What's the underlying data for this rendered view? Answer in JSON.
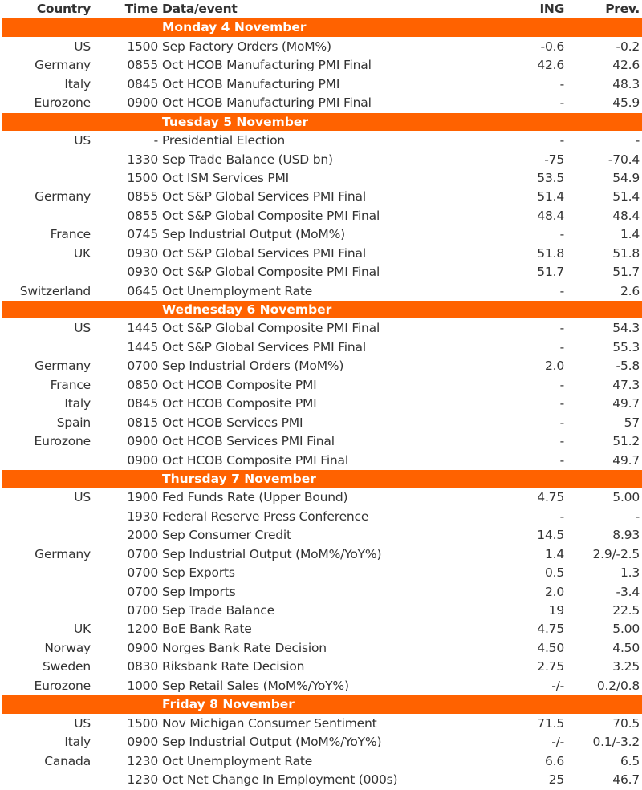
{
  "header": {
    "country": "Country",
    "time": "Time",
    "event": "Data/event",
    "ing": "ING",
    "prev": "Prev."
  },
  "colors": {
    "accent": "#ff6200",
    "text": "#333333"
  },
  "days": [
    {
      "label": "Monday 4 November",
      "rows": [
        [
          "US",
          "1500",
          "Sep Factory Orders (MoM%)",
          "-0.6",
          "-0.2"
        ],
        [
          "Germany",
          "0855",
          "Oct HCOB Manufacturing PMI Final",
          "42.6",
          "42.6"
        ],
        [
          "Italy",
          "0845",
          "Oct HCOB Manufacturing PMI",
          "-",
          "48.3"
        ],
        [
          "Eurozone",
          "0900",
          "Oct HCOB Manufacturing PMI Final",
          "-",
          "45.9"
        ]
      ]
    },
    {
      "label": "Tuesday 5 November",
      "rows": [
        [
          "US",
          "-",
          "Presidential Election",
          "-",
          "-"
        ],
        [
          "",
          "1330",
          "Sep Trade Balance (USD bn)",
          "-75",
          "-70.4"
        ],
        [
          "",
          "1500",
          "Oct ISM Services PMI",
          "53.5",
          "54.9"
        ],
        [
          "Germany",
          "0855",
          "Oct S&P Global Services PMI Final",
          "51.4",
          "51.4"
        ],
        [
          "",
          "0855",
          "Oct S&P Global Composite PMI Final",
          "48.4",
          "48.4"
        ],
        [
          "France",
          "0745",
          "Sep Industrial Output (MoM%)",
          "-",
          "1.4"
        ],
        [
          "UK",
          "0930",
          "Oct S&P Global Services PMI Final",
          "51.8",
          "51.8"
        ],
        [
          "",
          "0930",
          "Oct S&P Global Composite PMI Final",
          "51.7",
          "51.7"
        ],
        [
          "Switzerland",
          "0645",
          "Oct Unemployment Rate",
          "-",
          "2.6"
        ]
      ]
    },
    {
      "label": "Wednesday 6 November",
      "rows": [
        [
          "US",
          "1445",
          "Oct S&P Global Composite PMI Final",
          "-",
          "54.3"
        ],
        [
          "",
          "1445",
          "Oct S&P Global Services PMI Final",
          "-",
          "55.3"
        ],
        [
          "Germany",
          "0700",
          "Sep Industrial Orders (MoM%)",
          "2.0",
          "-5.8"
        ],
        [
          "France",
          "0850",
          "Oct HCOB Composite PMI",
          "-",
          "47.3"
        ],
        [
          "Italy",
          "0845",
          "Oct HCOB Composite PMI",
          "-",
          "49.7"
        ],
        [
          "Spain",
          "0815",
          "Oct HCOB Services PMI",
          "-",
          "57"
        ],
        [
          "Eurozone",
          "0900",
          "Oct HCOB Services PMI Final",
          "-",
          "51.2"
        ],
        [
          "",
          "0900",
          "Oct HCOB Composite PMI Final",
          "-",
          "49.7"
        ]
      ]
    },
    {
      "label": "Thursday 7 November",
      "rows": [
        [
          "US",
          "1900",
          "Fed Funds Rate (Upper Bound)",
          "4.75",
          "5.00"
        ],
        [
          "",
          "1930",
          "Federal Reserve Press Conference",
          "-",
          "-"
        ],
        [
          "",
          "2000",
          "Sep Consumer Credit",
          "14.5",
          "8.93"
        ],
        [
          "Germany",
          "0700",
          "Sep Industrial Output (MoM%/YoY%)",
          "1.4",
          "2.9/-2.5"
        ],
        [
          "",
          "0700",
          "Sep Exports",
          "0.5",
          "1.3"
        ],
        [
          "",
          "0700",
          "Sep Imports",
          "2.0",
          "-3.4"
        ],
        [
          "",
          "0700",
          "Sep Trade Balance",
          "19",
          "22.5"
        ],
        [
          "UK",
          "1200",
          "BoE Bank Rate",
          "4.75",
          "5.00"
        ],
        [
          "Norway",
          "0900",
          "Norges Bank Rate Decision",
          "4.50",
          "4.50"
        ],
        [
          "Sweden",
          "0830",
          "Riksbank Rate Decision",
          "2.75",
          "3.25"
        ],
        [
          "Eurozone",
          "1000",
          "Sep Retail Sales (MoM%/YoY%)",
          "-/-",
          "0.2/0.8"
        ]
      ]
    },
    {
      "label": "Friday 8 November",
      "rows": [
        [
          "US",
          "1500",
          "Nov Michigan Consumer Sentiment",
          "71.5",
          "70.5"
        ],
        [
          "Italy",
          "0900",
          "Sep Industrial Output (MoM%/YoY%)",
          "-/-",
          "0.1/-3.2"
        ],
        [
          "Canada",
          "1230",
          "Oct Unemployment Rate",
          "6.6",
          "6.5"
        ],
        [
          "",
          "1230",
          "Oct Net Change In Employment (000s)",
          "25",
          "46.7"
        ]
      ]
    }
  ]
}
